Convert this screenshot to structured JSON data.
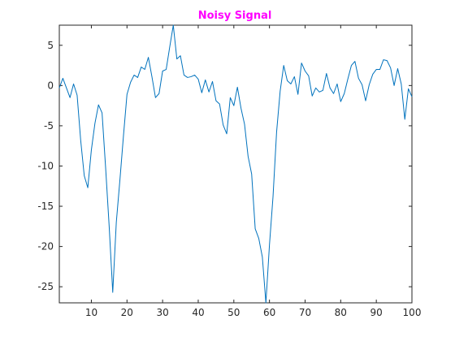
{
  "chart_data": {
    "type": "line",
    "title": "Noisy Signal",
    "xlabel": "",
    "ylabel": "",
    "xlim": [
      1,
      100
    ],
    "ylim": [
      -27,
      7.5
    ],
    "xticks": [
      10,
      20,
      30,
      40,
      50,
      60,
      70,
      80,
      90,
      100
    ],
    "yticks": [
      5,
      0,
      -5,
      -10,
      -15,
      -20,
      -25
    ],
    "grid": false,
    "legend": "none",
    "colors": {
      "title": "#ff00ff",
      "line": "#0072bd",
      "axes": "#262626",
      "background": "#ffffff"
    },
    "series": [
      {
        "x": [
          1,
          2,
          3,
          4,
          5,
          6,
          7,
          8,
          9,
          10,
          11,
          12,
          13,
          14,
          15,
          16,
          17,
          18,
          19,
          20,
          21,
          22,
          23,
          24,
          25,
          26,
          27,
          28,
          29,
          30,
          31,
          32,
          33,
          34,
          35,
          36,
          37,
          38,
          39,
          40,
          41,
          42,
          43,
          44,
          45,
          46,
          47,
          48,
          49,
          50,
          51,
          52,
          53,
          54,
          55,
          56,
          57,
          58,
          59,
          60,
          61,
          62,
          63,
          64,
          65,
          66,
          67,
          68,
          69,
          70,
          71,
          72,
          73,
          74,
          75,
          76,
          77,
          78,
          79,
          80,
          81,
          82,
          83,
          84,
          85,
          86,
          87,
          88,
          89,
          90,
          91,
          92,
          93,
          94,
          95,
          96,
          97,
          98,
          99,
          100
        ],
        "y": [
          -0.3,
          0.9,
          -0.3,
          -1.5,
          0.2,
          -1.2,
          -6.8,
          -11.2,
          -12.7,
          -8.0,
          -4.7,
          -2.4,
          -3.4,
          -10.2,
          -17.5,
          -25.7,
          -17.0,
          -11.8,
          -6.3,
          -1.1,
          0.4,
          1.3,
          1.0,
          2.3,
          2.0,
          3.5,
          1.1,
          -1.5,
          -1.0,
          1.8,
          2.0,
          4.8,
          7.5,
          3.3,
          3.7,
          1.3,
          1.0,
          1.1,
          1.3,
          0.8,
          -0.9,
          0.7,
          -0.8,
          0.5,
          -1.9,
          -2.3,
          -4.9,
          -6.0,
          -1.5,
          -2.5,
          -0.2,
          -2.8,
          -4.8,
          -8.8,
          -11.0,
          -17.8,
          -19.0,
          -21.3,
          -27.0,
          -19.8,
          -13.8,
          -5.8,
          -0.7,
          2.5,
          0.6,
          0.2,
          1.1,
          -1.1,
          2.8,
          1.8,
          1.2,
          -1.3,
          -0.3,
          -0.8,
          -0.6,
          1.5,
          -0.3,
          -1.0,
          0.2,
          -2.0,
          -1.0,
          0.8,
          2.5,
          3.0,
          0.9,
          0.1,
          -1.9,
          0.1,
          1.4,
          2.0,
          2.0,
          3.2,
          3.1,
          2.2,
          0.0,
          2.1,
          0.2,
          -4.2,
          -0.4,
          -1.4
        ]
      }
    ]
  }
}
